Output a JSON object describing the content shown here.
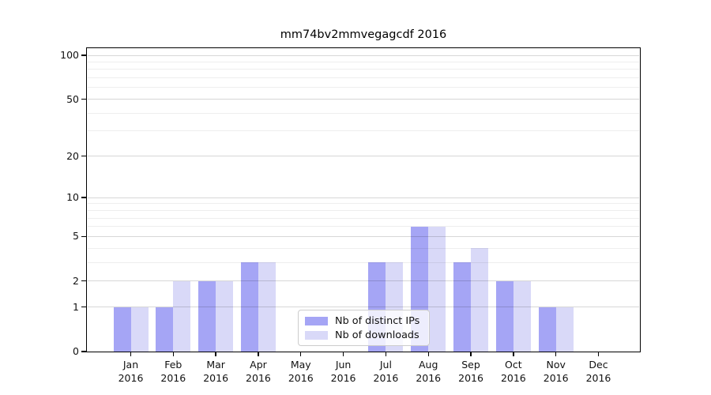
{
  "chart_data": {
    "type": "bar",
    "title": "mm74bv2mmvegagcdf 2016",
    "categories": [
      "Jan",
      "Feb",
      "Mar",
      "Apr",
      "May",
      "Jun",
      "Jul",
      "Aug",
      "Sep",
      "Oct",
      "Nov",
      "Dec"
    ],
    "category_year": "2016",
    "series": [
      {
        "name": "Nb of distinct IPs",
        "color": "#a5a5f5",
        "values": [
          1,
          1,
          2,
          3,
          0,
          0,
          3,
          6,
          3,
          2,
          1,
          0
        ]
      },
      {
        "name": "Nb of downloads",
        "color": "#d9d9f8",
        "values": [
          1,
          2,
          2,
          3,
          0,
          0,
          3,
          6,
          4,
          2,
          1,
          0
        ]
      }
    ],
    "yscale": "symlog",
    "yticks": [
      0,
      1,
      2,
      5,
      10,
      20,
      50,
      100
    ],
    "minor_yticks": [
      3,
      4,
      6,
      7,
      8,
      9,
      30,
      40,
      60,
      70,
      80,
      90
    ],
    "ylim": [
      0,
      112
    ],
    "xlabel": "",
    "ylabel": "",
    "grid": true,
    "legend_position": "lower center",
    "spine_color": "#000000",
    "text_color": "#111111"
  }
}
